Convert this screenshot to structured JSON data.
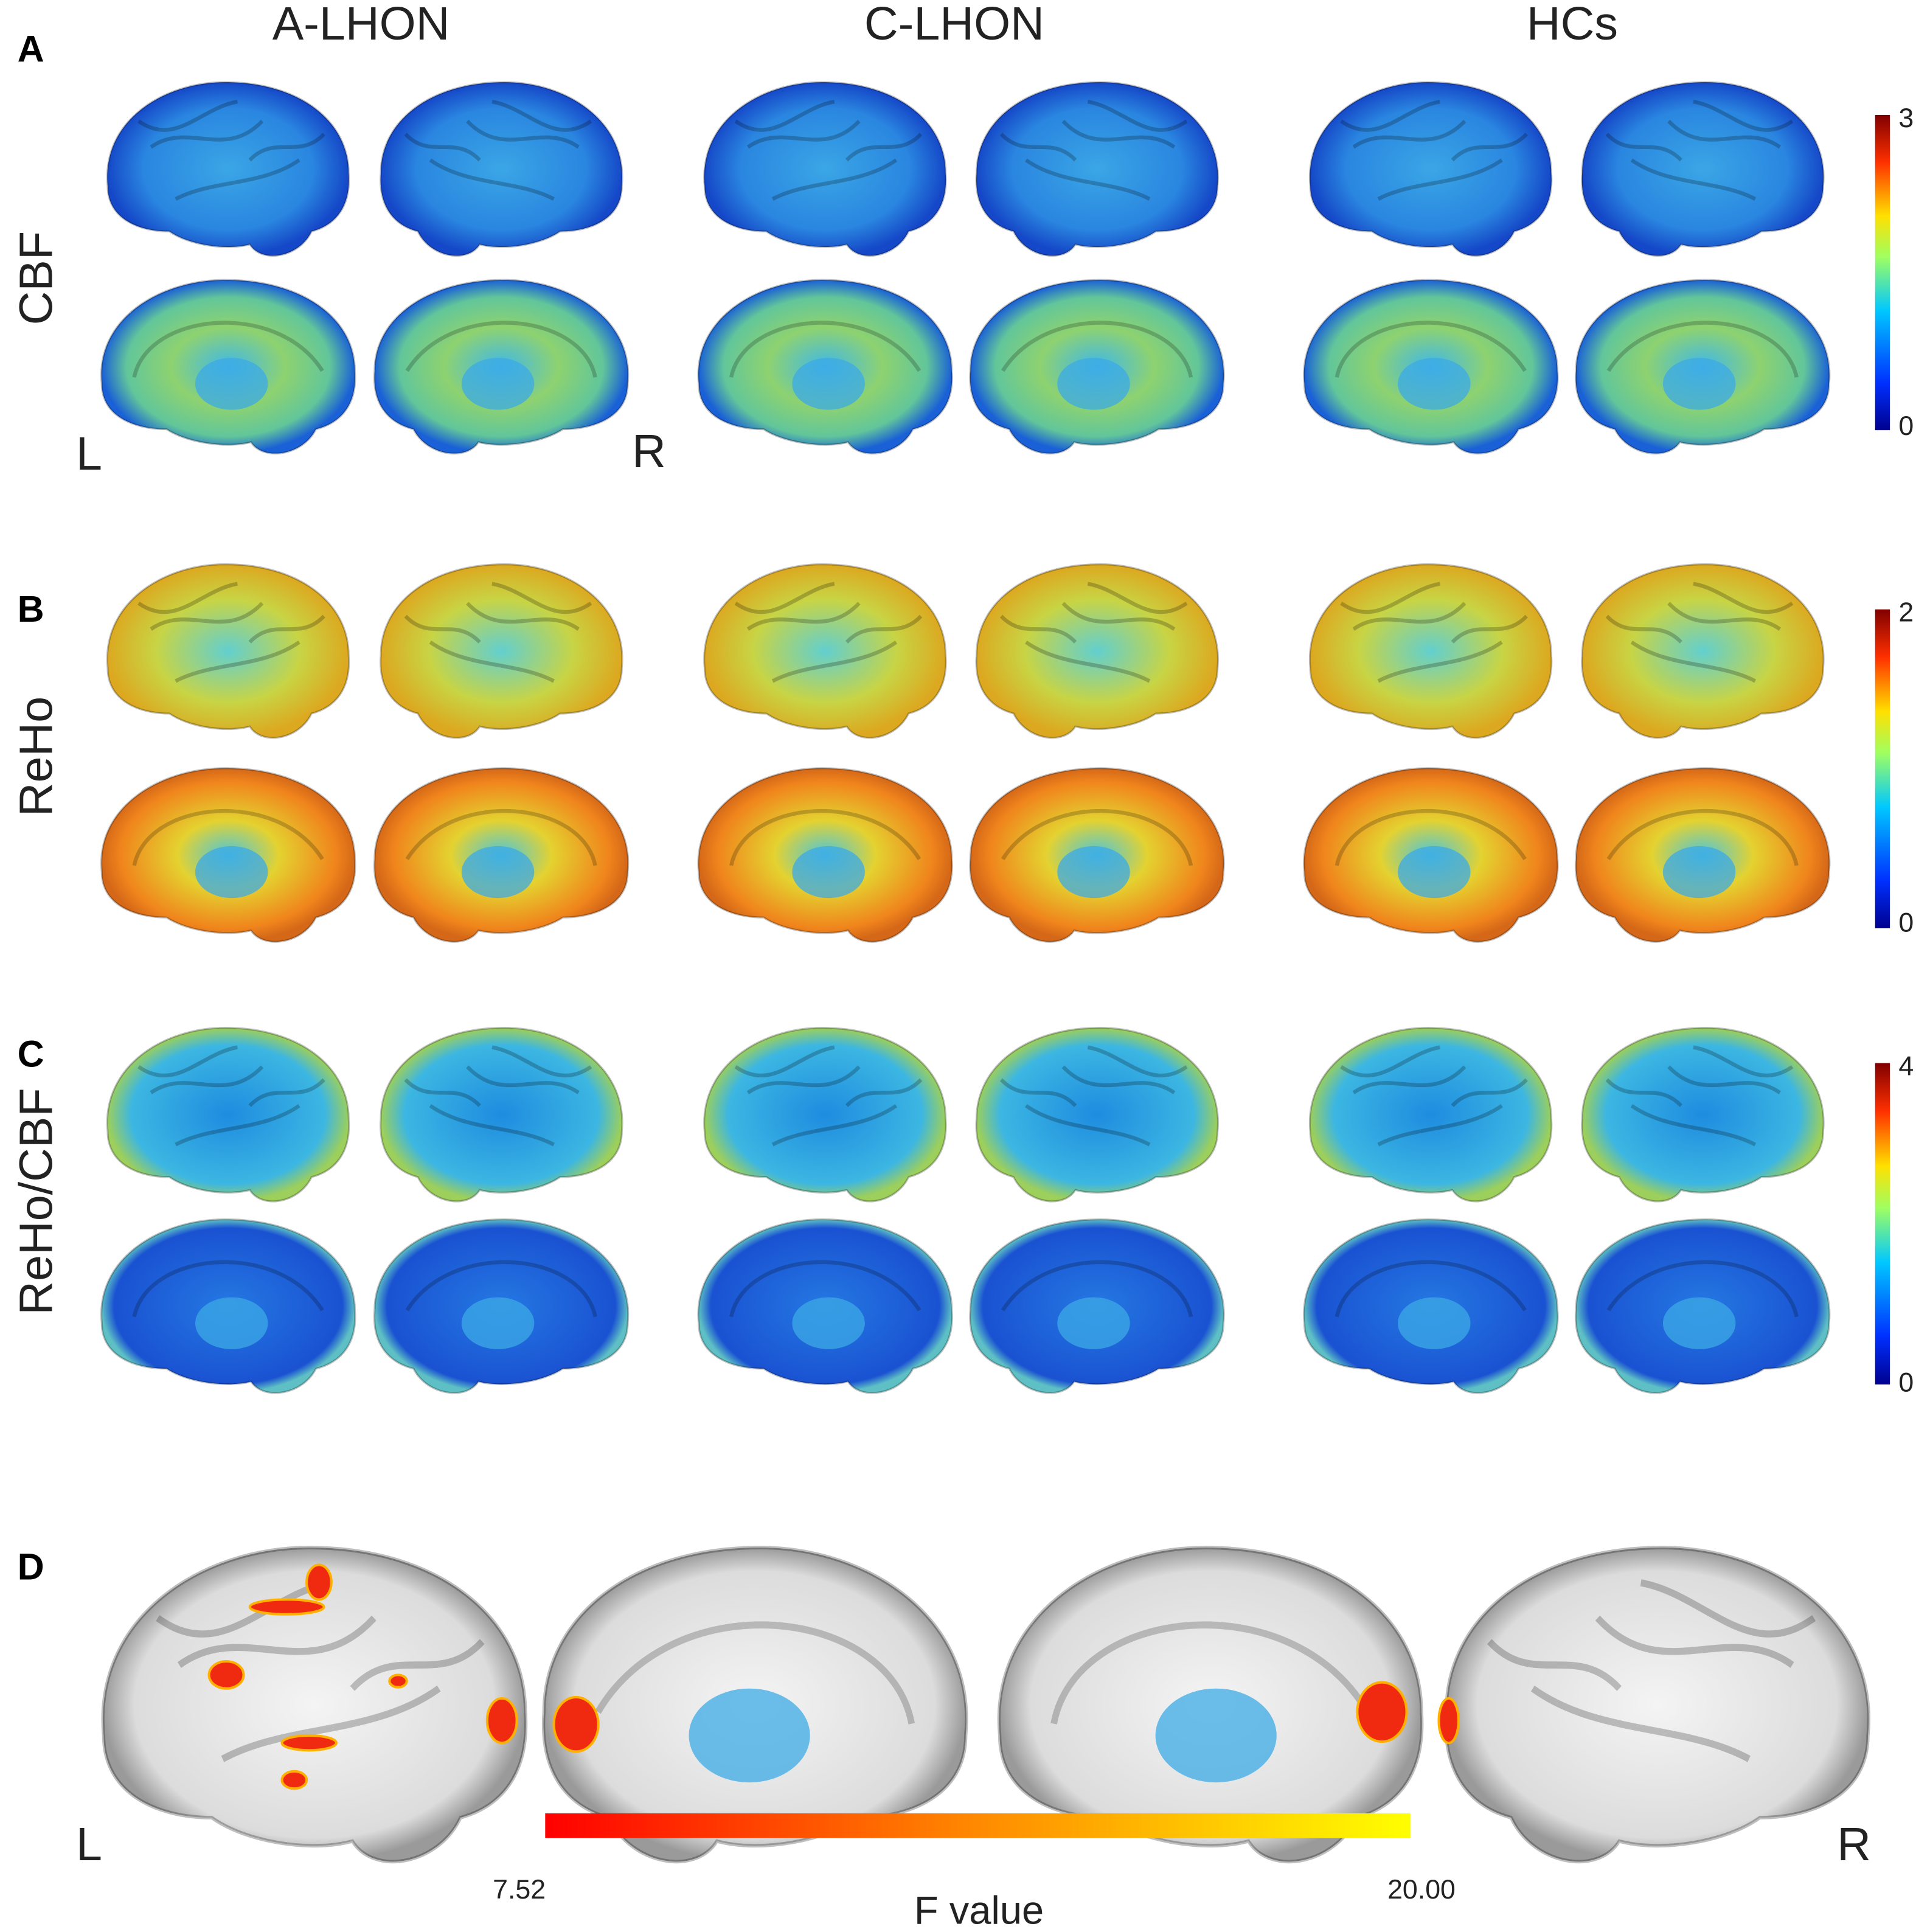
{
  "columns": [
    "A-LHON",
    "C-LHON",
    "HCs"
  ],
  "panels": [
    {
      "label": "A",
      "row_label": "CBF",
      "colorbar": {
        "max": 3,
        "min": 0
      },
      "left": "L",
      "right": "R"
    },
    {
      "label": "B",
      "row_label": "ReHo",
      "colorbar": {
        "max": 2,
        "min": 0
      }
    },
    {
      "label": "C",
      "row_label": "ReHo/CBF",
      "colorbar": {
        "max": 4,
        "min": 0
      }
    }
  ],
  "panel_d": {
    "label": "D",
    "left": "L",
    "right": "R",
    "colorbar": {
      "min": 7.52,
      "max": {
        "value": 20,
        "label": "20.00"
      },
      "title": "F value"
    }
  }
}
